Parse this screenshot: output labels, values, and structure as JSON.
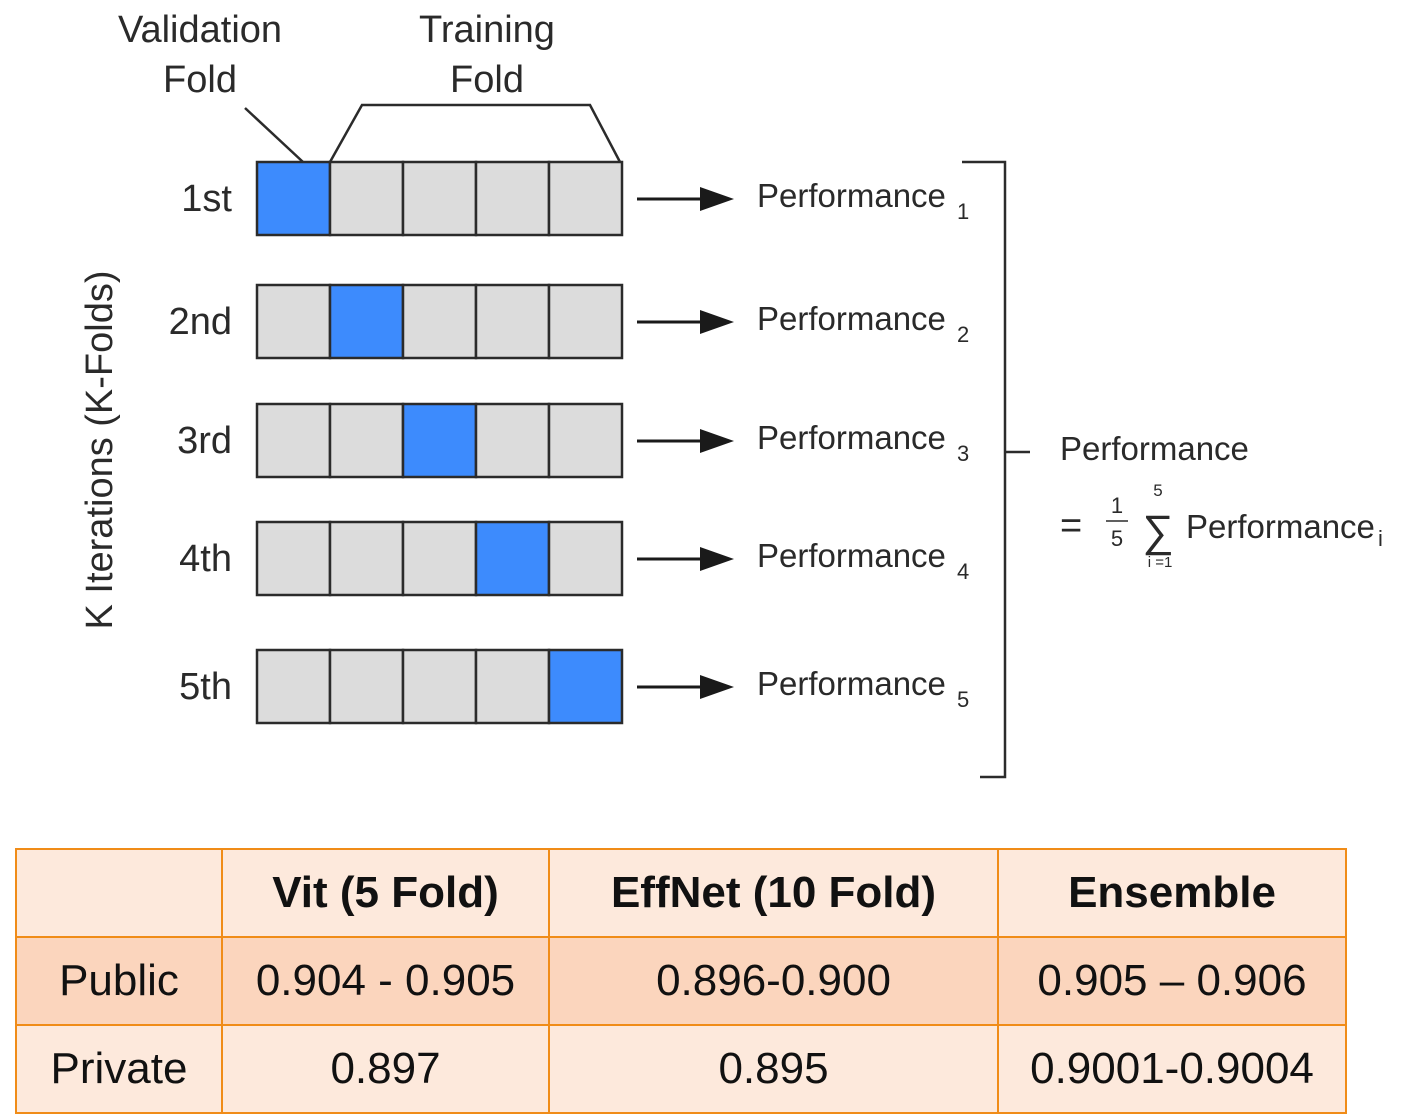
{
  "diagram": {
    "validation_fold_label": [
      "Validation",
      "Fold"
    ],
    "training_fold_label": [
      "Training",
      "Fold"
    ],
    "y_axis_label": "K Iterations (K-Folds)",
    "folds_per_iteration": 5,
    "iterations": [
      {
        "label": "1st",
        "validation_index": 0,
        "performance": "Performance",
        "subscript": "1"
      },
      {
        "label": "2nd",
        "validation_index": 1,
        "performance": "Performance",
        "subscript": "2"
      },
      {
        "label": "3rd",
        "validation_index": 2,
        "performance": "Performance",
        "subscript": "3"
      },
      {
        "label": "4th",
        "validation_index": 3,
        "performance": "Performance",
        "subscript": "4"
      },
      {
        "label": "5th",
        "validation_index": 4,
        "performance": "Performance",
        "subscript": "5"
      }
    ],
    "result_label": "Performance",
    "formula": {
      "equals": "=",
      "numerator": "1",
      "denominator": "5",
      "sum": "∑",
      "upper": "5",
      "lower": "i =1",
      "term": "Performance",
      "term_subscript": "i"
    },
    "colors": {
      "validation": "#3d8bfd",
      "training": "#dcdcdc",
      "border": "#2b2b2b"
    }
  },
  "table": {
    "header": [
      "",
      "Vit (5 Fold)",
      "EffNet (10 Fold)",
      "Ensemble"
    ],
    "rows": [
      [
        "Public",
        "0.904 - 0.905",
        "0.896-0.900",
        "0.905 – 0.906"
      ],
      [
        "Private",
        "0.897",
        "0.895",
        "0.9001-0.9004"
      ]
    ],
    "colors": {
      "border": "#f08c18",
      "light_fill": "#fde9dc",
      "dark_fill": "#fbd5bd"
    }
  }
}
